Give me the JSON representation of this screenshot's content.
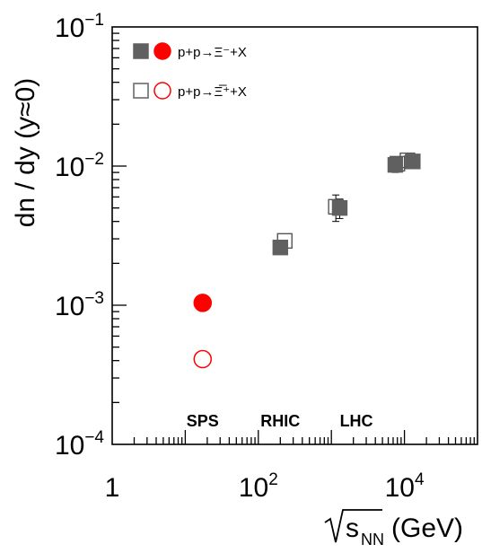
{
  "chart_data": {
    "type": "scatter",
    "x_scale": "log",
    "y_scale": "log",
    "xlim": [
      1,
      100000
    ],
    "ylim": [
      0.0001,
      0.1
    ],
    "ylabel": "dn / dy (y≈0)",
    "xlabel": "(GeV)",
    "xlabel_symbol": "s",
    "xlabel_subscript": "NN",
    "x_tick_labels": [
      {
        "x": 1,
        "base": "1",
        "exp": ""
      },
      {
        "x": 100,
        "base": "10",
        "exp": "2"
      },
      {
        "x": 10000,
        "base": "10",
        "exp": "4"
      }
    ],
    "y_tick_labels": [
      {
        "y": 0.1,
        "base": "10",
        "exp": "−1"
      },
      {
        "y": 0.01,
        "base": "10",
        "exp": "−2"
      },
      {
        "y": 0.001,
        "base": "10",
        "exp": "−3"
      },
      {
        "y": 0.0001,
        "base": "10",
        "exp": "−4"
      }
    ],
    "region_labels": [
      {
        "text": "SPS",
        "x": 17.3
      },
      {
        "text": "RHIC",
        "x": 200
      },
      {
        "text": "LHC",
        "x": 2200
      }
    ],
    "legend": [
      {
        "text": "p+p→Ξ⁻+X",
        "filled": true
      },
      {
        "text": "p+p→Ξ̅⁺+X",
        "filled": false
      }
    ],
    "series": [
      {
        "name": "p+p→Ξ⁻+X",
        "points": [
          {
            "x": 17.3,
            "y": 0.00104,
            "marker": "circle",
            "color": "#ff0000",
            "fill": true
          },
          {
            "x": 200,
            "y": 0.0026,
            "marker": "square",
            "color": "#606060",
            "fill": true
          },
          {
            "x": 1300,
            "y": 0.005,
            "marker": "square",
            "color": "#606060",
            "fill": true,
            "err": 0.0008
          },
          {
            "x": 7500,
            "y": 0.0102,
            "marker": "square",
            "color": "#606060",
            "fill": true,
            "err": 0.0012
          },
          {
            "x": 13000,
            "y": 0.0108,
            "marker": "square",
            "color": "#606060",
            "fill": true,
            "err": 0.0008
          }
        ]
      },
      {
        "name": "p+p→Ξ̅⁺+X",
        "points": [
          {
            "x": 17.3,
            "y": 0.00041,
            "marker": "circle",
            "color": "#ff0000",
            "fill": false
          },
          {
            "x": 230,
            "y": 0.0029,
            "marker": "square",
            "color": "#606060",
            "fill": false
          },
          {
            "x": 1150,
            "y": 0.0051,
            "marker": "square",
            "color": "#606060",
            "fill": false,
            "err": 0.0011
          },
          {
            "x": 8000,
            "y": 0.0104,
            "marker": "square",
            "color": "#606060",
            "fill": false,
            "err": 0.001
          },
          {
            "x": 11000,
            "y": 0.011,
            "marker": "square",
            "color": "#606060",
            "fill": false,
            "err": 0.0008
          }
        ]
      }
    ]
  }
}
